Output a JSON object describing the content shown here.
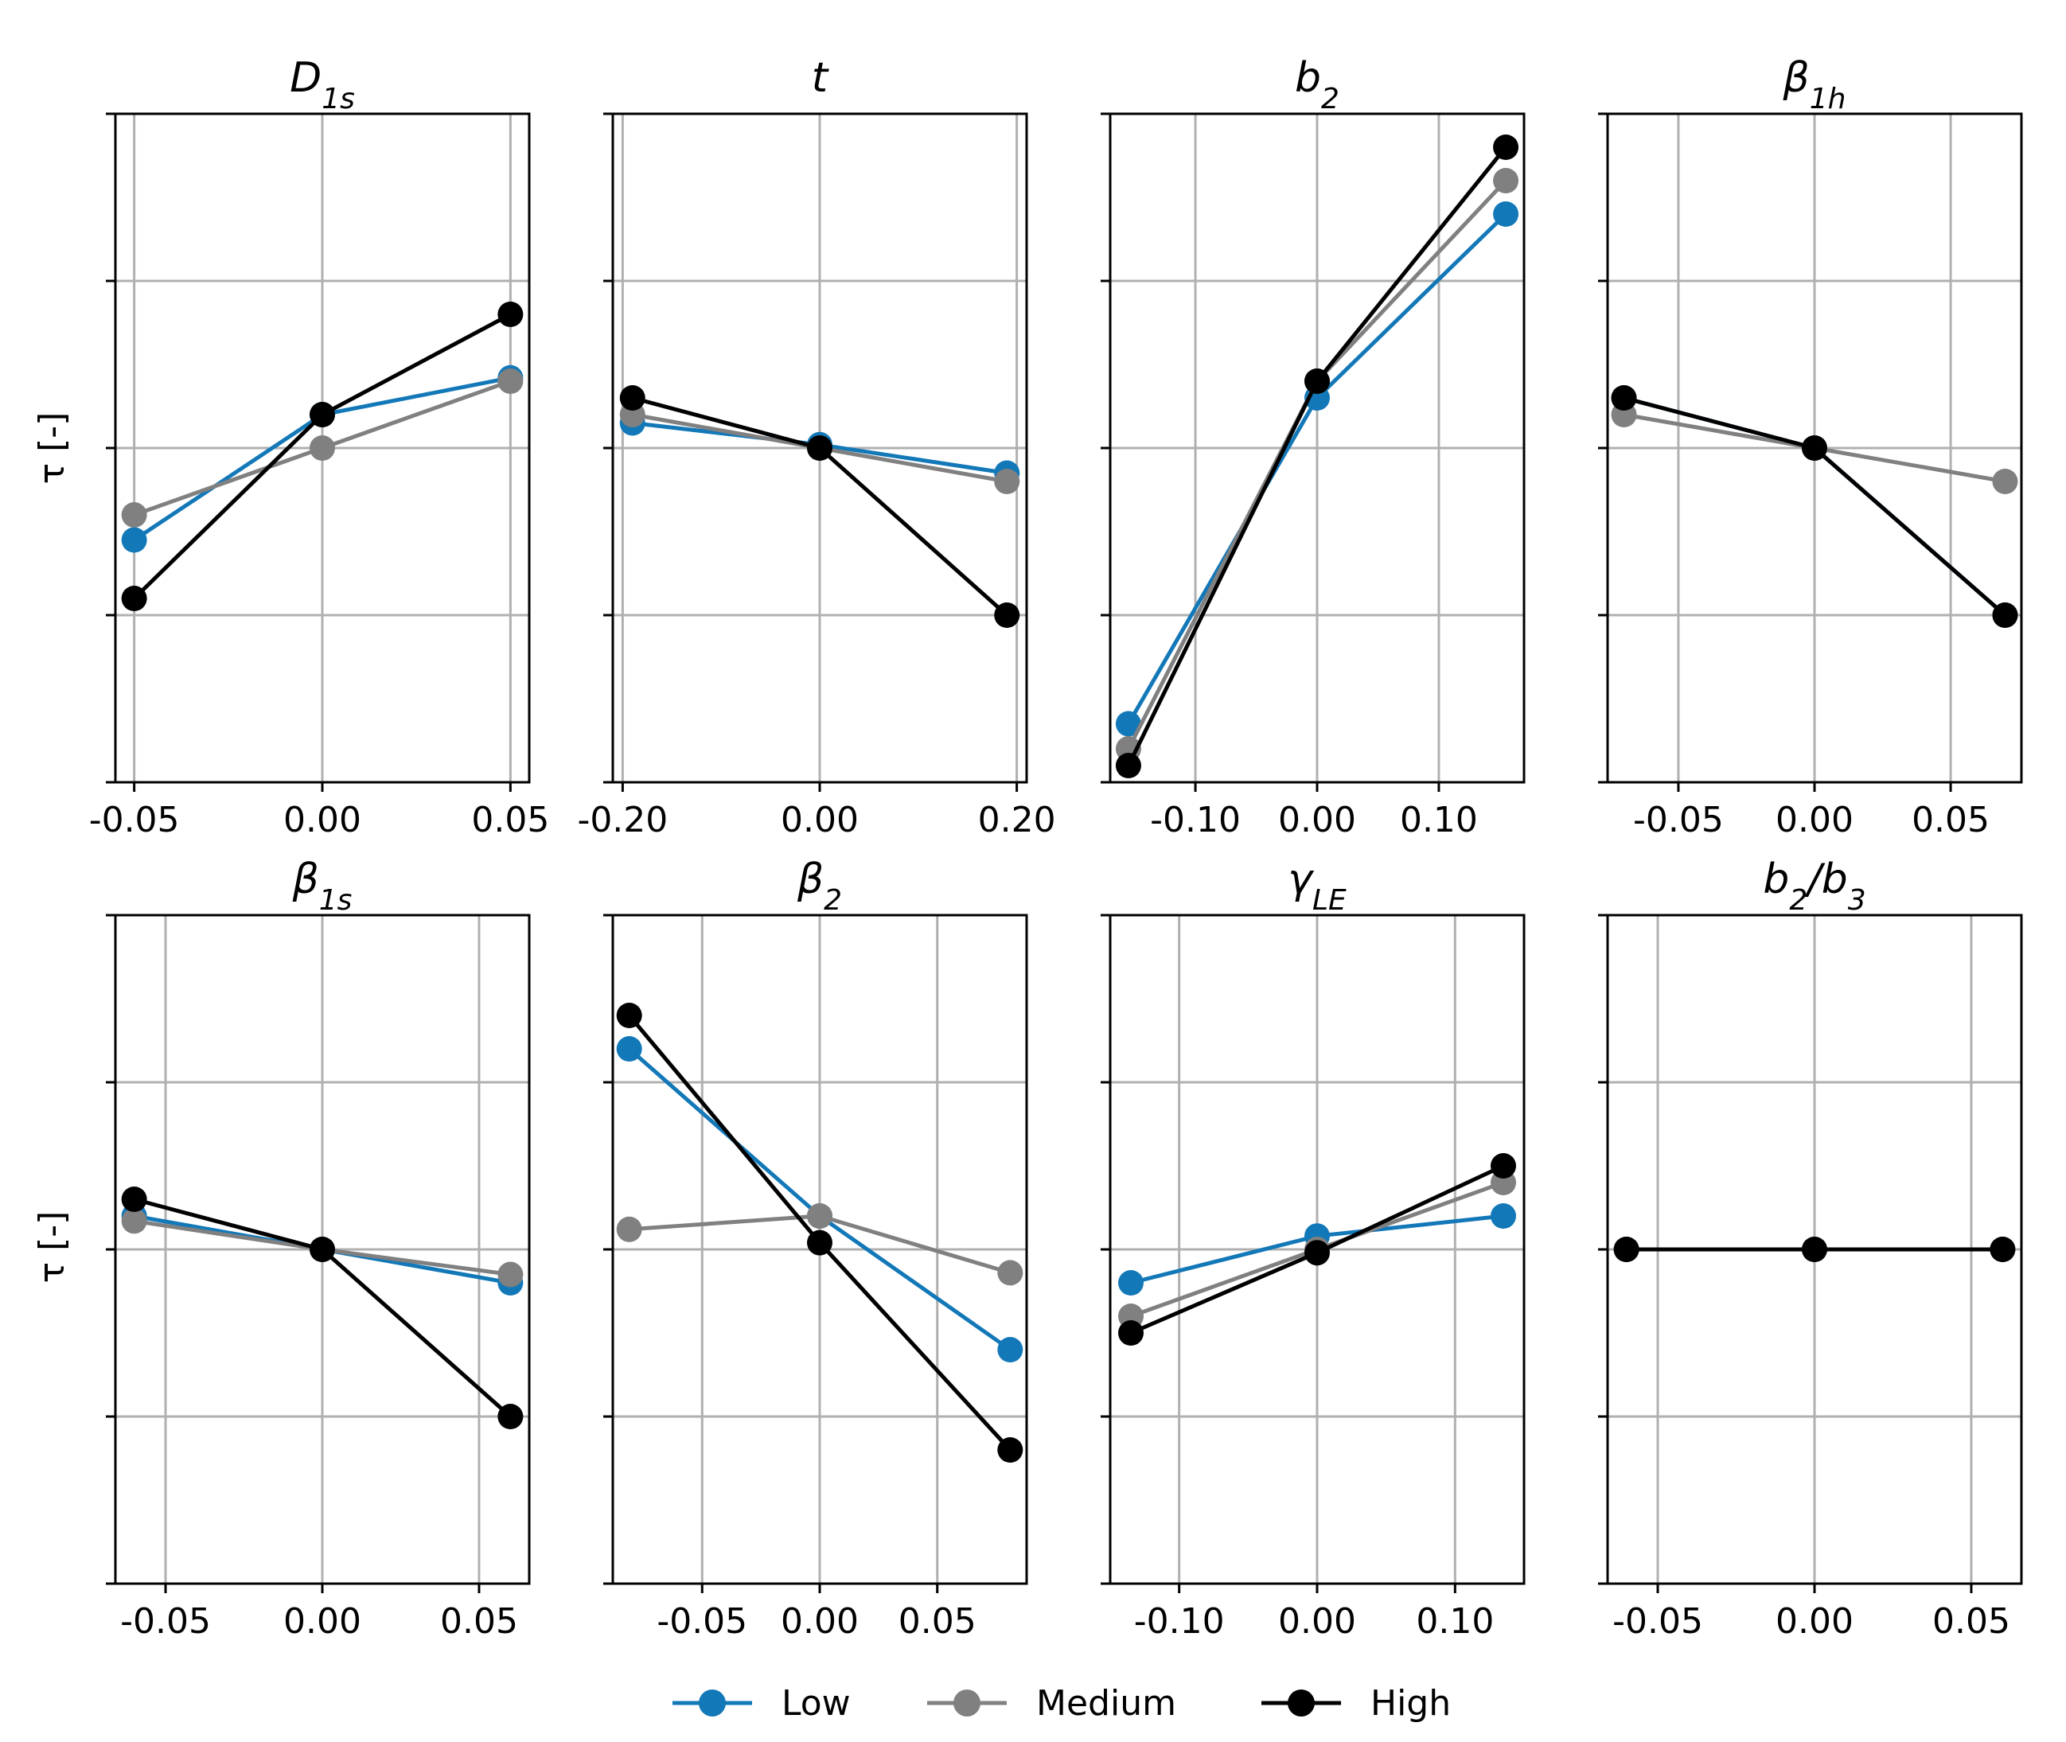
{
  "legend": [
    "Low",
    "Medium",
    "High"
  ],
  "colors": {
    "Low": "#1378b8",
    "Medium": "#808080",
    "High": "#000000",
    "grid": "#b0b0b0",
    "axis": "#000000"
  },
  "ylabel": "τ [-]",
  "chart_data": [
    {
      "type": "line",
      "title": "D",
      "title_sub": "1s",
      "xlim": [
        -0.055,
        0.055
      ],
      "ylim": [
        -2,
        2
      ],
      "xticks": [
        -0.05,
        0,
        0.05
      ],
      "xtick_labels": [
        "-0.05",
        "0.00",
        "0.05"
      ],
      "yticks": [
        -2,
        -1,
        0,
        1,
        2
      ],
      "x": [
        -0.05,
        0,
        0.05
      ],
      "series": [
        {
          "name": "Low",
          "values": [
            -0.55,
            0.2,
            0.42
          ]
        },
        {
          "name": "Medium",
          "values": [
            -0.4,
            0.0,
            0.4
          ]
        },
        {
          "name": "High",
          "values": [
            -0.9,
            0.2,
            0.8
          ]
        }
      ]
    },
    {
      "type": "line",
      "title": "t",
      "title_sub": "",
      "xlim": [
        -0.21,
        0.21
      ],
      "ylim": [
        -2,
        2
      ],
      "xticks": [
        -0.2,
        0,
        0.2
      ],
      "xtick_labels": [
        "-0.20",
        "0.00",
        "0.20"
      ],
      "yticks": [
        -2,
        -1,
        0,
        1,
        2
      ],
      "x": [
        -0.19,
        0,
        0.19
      ],
      "series": [
        {
          "name": "Low",
          "values": [
            0.15,
            0.02,
            -0.15
          ]
        },
        {
          "name": "Medium",
          "values": [
            0.2,
            0.0,
            -0.2
          ]
        },
        {
          "name": "High",
          "values": [
            0.3,
            0.0,
            -1.0
          ]
        }
      ]
    },
    {
      "type": "line",
      "title": "b",
      "title_sub": "2",
      "xlim": [
        -0.17,
        0.17
      ],
      "ylim": [
        -2,
        2
      ],
      "xticks": [
        -0.1,
        0,
        0.1
      ],
      "xtick_labels": [
        "-0.10",
        "0.00",
        "0.10"
      ],
      "yticks": [
        -2,
        -1,
        0,
        1,
        2
      ],
      "x": [
        -0.155,
        0,
        0.155
      ],
      "series": [
        {
          "name": "Low",
          "values": [
            -1.65,
            0.3,
            1.4
          ]
        },
        {
          "name": "Medium",
          "values": [
            -1.8,
            0.4,
            1.6
          ]
        },
        {
          "name": "High",
          "values": [
            -1.9,
            0.4,
            1.8
          ]
        }
      ]
    },
    {
      "type": "line",
      "title": "β",
      "title_sub": "1h",
      "xlim": [
        -0.076,
        0.076
      ],
      "ylim": [
        -2,
        2
      ],
      "xticks": [
        -0.05,
        0,
        0.05
      ],
      "xtick_labels": [
        "-0.05",
        "0.00",
        "0.05"
      ],
      "yticks": [
        -2,
        -1,
        0,
        1,
        2
      ],
      "x": [
        -0.07,
        0,
        0.07
      ],
      "series": [
        {
          "name": "Low",
          "values": [
            0.3,
            0.0,
            -1.0
          ]
        },
        {
          "name": "Medium",
          "values": [
            0.2,
            0.0,
            -0.2
          ]
        },
        {
          "name": "High",
          "values": [
            0.3,
            0.0,
            -1.0
          ]
        }
      ]
    },
    {
      "type": "line",
      "title": "β",
      "title_sub": "1s",
      "xlim": [
        -0.066,
        0.066
      ],
      "ylim": [
        -2,
        2
      ],
      "xticks": [
        -0.05,
        0,
        0.05
      ],
      "xtick_labels": [
        "-0.05",
        "0.00",
        "0.05"
      ],
      "yticks": [
        -2,
        -1,
        0,
        1,
        2
      ],
      "x": [
        -0.06,
        0,
        0.06
      ],
      "series": [
        {
          "name": "Low",
          "values": [
            0.2,
            0.0,
            -0.2
          ]
        },
        {
          "name": "Medium",
          "values": [
            0.17,
            0.0,
            -0.15
          ]
        },
        {
          "name": "High",
          "values": [
            0.3,
            0.0,
            -1.0
          ]
        }
      ]
    },
    {
      "type": "line",
      "title": "β",
      "title_sub": "2",
      "xlim": [
        -0.088,
        0.088
      ],
      "ylim": [
        -2,
        2
      ],
      "xticks": [
        -0.05,
        0,
        0.05
      ],
      "xtick_labels": [
        "-0.05",
        "0.00",
        "0.05"
      ],
      "yticks": [
        -2,
        -1,
        0,
        1,
        2
      ],
      "x": [
        -0.081,
        0,
        0.081
      ],
      "series": [
        {
          "name": "Low",
          "values": [
            1.2,
            0.2,
            -0.6
          ]
        },
        {
          "name": "Medium",
          "values": [
            0.12,
            0.2,
            -0.14
          ]
        },
        {
          "name": "High",
          "values": [
            1.4,
            0.04,
            -1.2
          ]
        }
      ]
    },
    {
      "type": "line",
      "title": "γ",
      "title_sub": "LE",
      "xlim": [
        -0.15,
        0.15
      ],
      "ylim": [
        -2,
        2
      ],
      "xticks": [
        -0.1,
        0,
        0.1
      ],
      "xtick_labels": [
        "-0.10",
        "0.00",
        "0.10"
      ],
      "yticks": [
        -2,
        -1,
        0,
        1,
        2
      ],
      "x": [
        -0.135,
        0,
        0.135
      ],
      "series": [
        {
          "name": "Low",
          "values": [
            -0.2,
            0.08,
            0.2
          ]
        },
        {
          "name": "Medium",
          "values": [
            -0.4,
            0.0,
            0.4
          ]
        },
        {
          "name": "High",
          "values": [
            -0.5,
            -0.02,
            0.5
          ]
        }
      ]
    },
    {
      "type": "line",
      "title": "b",
      "title_sub": "2",
      "title_mid": "/b",
      "title_sub2": "3",
      "xlim": [
        -0.066,
        0.066
      ],
      "ylim": [
        -2,
        2
      ],
      "xticks": [
        -0.05,
        0,
        0.05
      ],
      "xtick_labels": [
        "-0.05",
        "0.00",
        "0.05"
      ],
      "yticks": [
        -2,
        -1,
        0,
        1,
        2
      ],
      "x": [
        -0.06,
        0,
        0.06
      ],
      "series": [
        {
          "name": "Low",
          "values": [
            0,
            0,
            0
          ]
        },
        {
          "name": "Medium",
          "values": [
            0,
            0,
            0
          ]
        },
        {
          "name": "High",
          "values": [
            0,
            0,
            0
          ]
        }
      ]
    }
  ]
}
